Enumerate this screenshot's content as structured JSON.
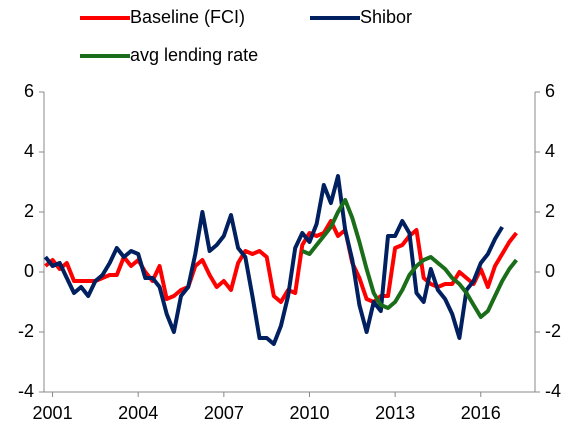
{
  "chart_data": {
    "type": "line",
    "x": [
      2000.75,
      2001,
      2001.25,
      2001.5,
      2001.75,
      2002,
      2002.25,
      2002.5,
      2002.75,
      2003,
      2003.25,
      2003.5,
      2003.75,
      2004,
      2004.25,
      2004.5,
      2004.75,
      2005,
      2005.25,
      2005.5,
      2005.75,
      2006,
      2006.25,
      2006.5,
      2006.75,
      2007,
      2007.25,
      2007.5,
      2007.75,
      2008,
      2008.25,
      2008.5,
      2008.75,
      2009,
      2009.25,
      2009.5,
      2009.75,
      2010,
      2010.25,
      2010.5,
      2010.75,
      2011,
      2011.25,
      2011.5,
      2011.75,
      2012,
      2012.25,
      2012.5,
      2012.75,
      2013,
      2013.25,
      2013.5,
      2013.75,
      2014,
      2014.25,
      2014.5,
      2014.75,
      2015,
      2015.25,
      2015.5,
      2015.75,
      2016,
      2016.25,
      2016.5,
      2016.75,
      2017,
      2017.25
    ],
    "series": [
      {
        "name": "Baseline (FCI)",
        "color": "#ff0000",
        "values": [
          0.2,
          0.4,
          0.1,
          0.3,
          -0.3,
          -0.3,
          -0.3,
          -0.3,
          -0.2,
          -0.1,
          -0.1,
          0.5,
          0.2,
          0.4,
          0.0,
          -0.3,
          0.2,
          -0.9,
          -0.8,
          -0.6,
          -0.5,
          0.2,
          0.4,
          -0.1,
          -0.5,
          -0.3,
          -0.6,
          0.3,
          0.7,
          0.6,
          0.7,
          0.5,
          -0.8,
          -1.0,
          -0.6,
          -0.7,
          0.9,
          1.3,
          1.2,
          1.3,
          1.7,
          1.2,
          1.4,
          0.3,
          -0.2,
          -0.9,
          -1.0,
          -0.8,
          -0.8,
          0.8,
          0.9,
          1.2,
          1.4,
          -0.2,
          -0.4,
          -0.5,
          -0.4,
          -0.4,
          0.0,
          -0.2,
          -0.4,
          0.1,
          -0.5,
          0.2,
          0.6,
          1.0,
          1.3
        ]
      },
      {
        "name": "Shibor",
        "color": "#002060",
        "values": [
          0.5,
          0.2,
          0.3,
          -0.2,
          -0.7,
          -0.5,
          -0.8,
          -0.3,
          -0.1,
          0.3,
          0.8,
          0.5,
          0.7,
          0.6,
          -0.2,
          -0.2,
          -0.5,
          -1.4,
          -2.0,
          -0.8,
          -0.5,
          0.6,
          2.0,
          0.7,
          0.9,
          1.2,
          1.9,
          0.8,
          0.5,
          -0.8,
          -2.2,
          -2.2,
          -2.4,
          -1.8,
          -0.8,
          0.8,
          1.3,
          1.0,
          1.6,
          2.9,
          2.3,
          3.2,
          1.4,
          0.4,
          -1.1,
          -2.0,
          -1.0,
          -1.3,
          1.2,
          1.2,
          1.7,
          1.3,
          -0.7,
          -1.0,
          0.1,
          -0.6,
          -0.9,
          -1.4,
          -2.2,
          -0.6,
          -0.3,
          0.3,
          0.6,
          1.1,
          1.5,
          null,
          null
        ]
      },
      {
        "name": "avg lending rate",
        "color": "#1a6e1a",
        "values": [
          null,
          null,
          null,
          null,
          null,
          null,
          null,
          null,
          null,
          null,
          null,
          null,
          null,
          null,
          null,
          null,
          null,
          null,
          null,
          null,
          null,
          null,
          null,
          null,
          null,
          null,
          null,
          null,
          null,
          null,
          null,
          null,
          null,
          null,
          null,
          null,
          0.7,
          0.6,
          0.9,
          1.2,
          1.5,
          2.0,
          2.4,
          1.8,
          1.0,
          0.1,
          -0.7,
          -1.1,
          -1.2,
          -1.0,
          -0.6,
          -0.1,
          0.2,
          0.4,
          0.5,
          0.3,
          0.1,
          -0.2,
          -0.4,
          -0.7,
          -1.1,
          -1.5,
          -1.3,
          -0.8,
          -0.3,
          0.1,
          0.4
        ]
      }
    ],
    "xlim": [
      2000.7,
      2017.9
    ],
    "xticks": [
      2001,
      2004,
      2007,
      2010,
      2013,
      2016
    ],
    "ylim": [
      -4,
      6
    ],
    "yticks": [
      -4,
      -2,
      0,
      2,
      4,
      6
    ],
    "y2lim": [
      -4,
      6
    ],
    "y2ticks": [
      -4,
      -2,
      0,
      2,
      4,
      6
    ],
    "grid": false
  }
}
